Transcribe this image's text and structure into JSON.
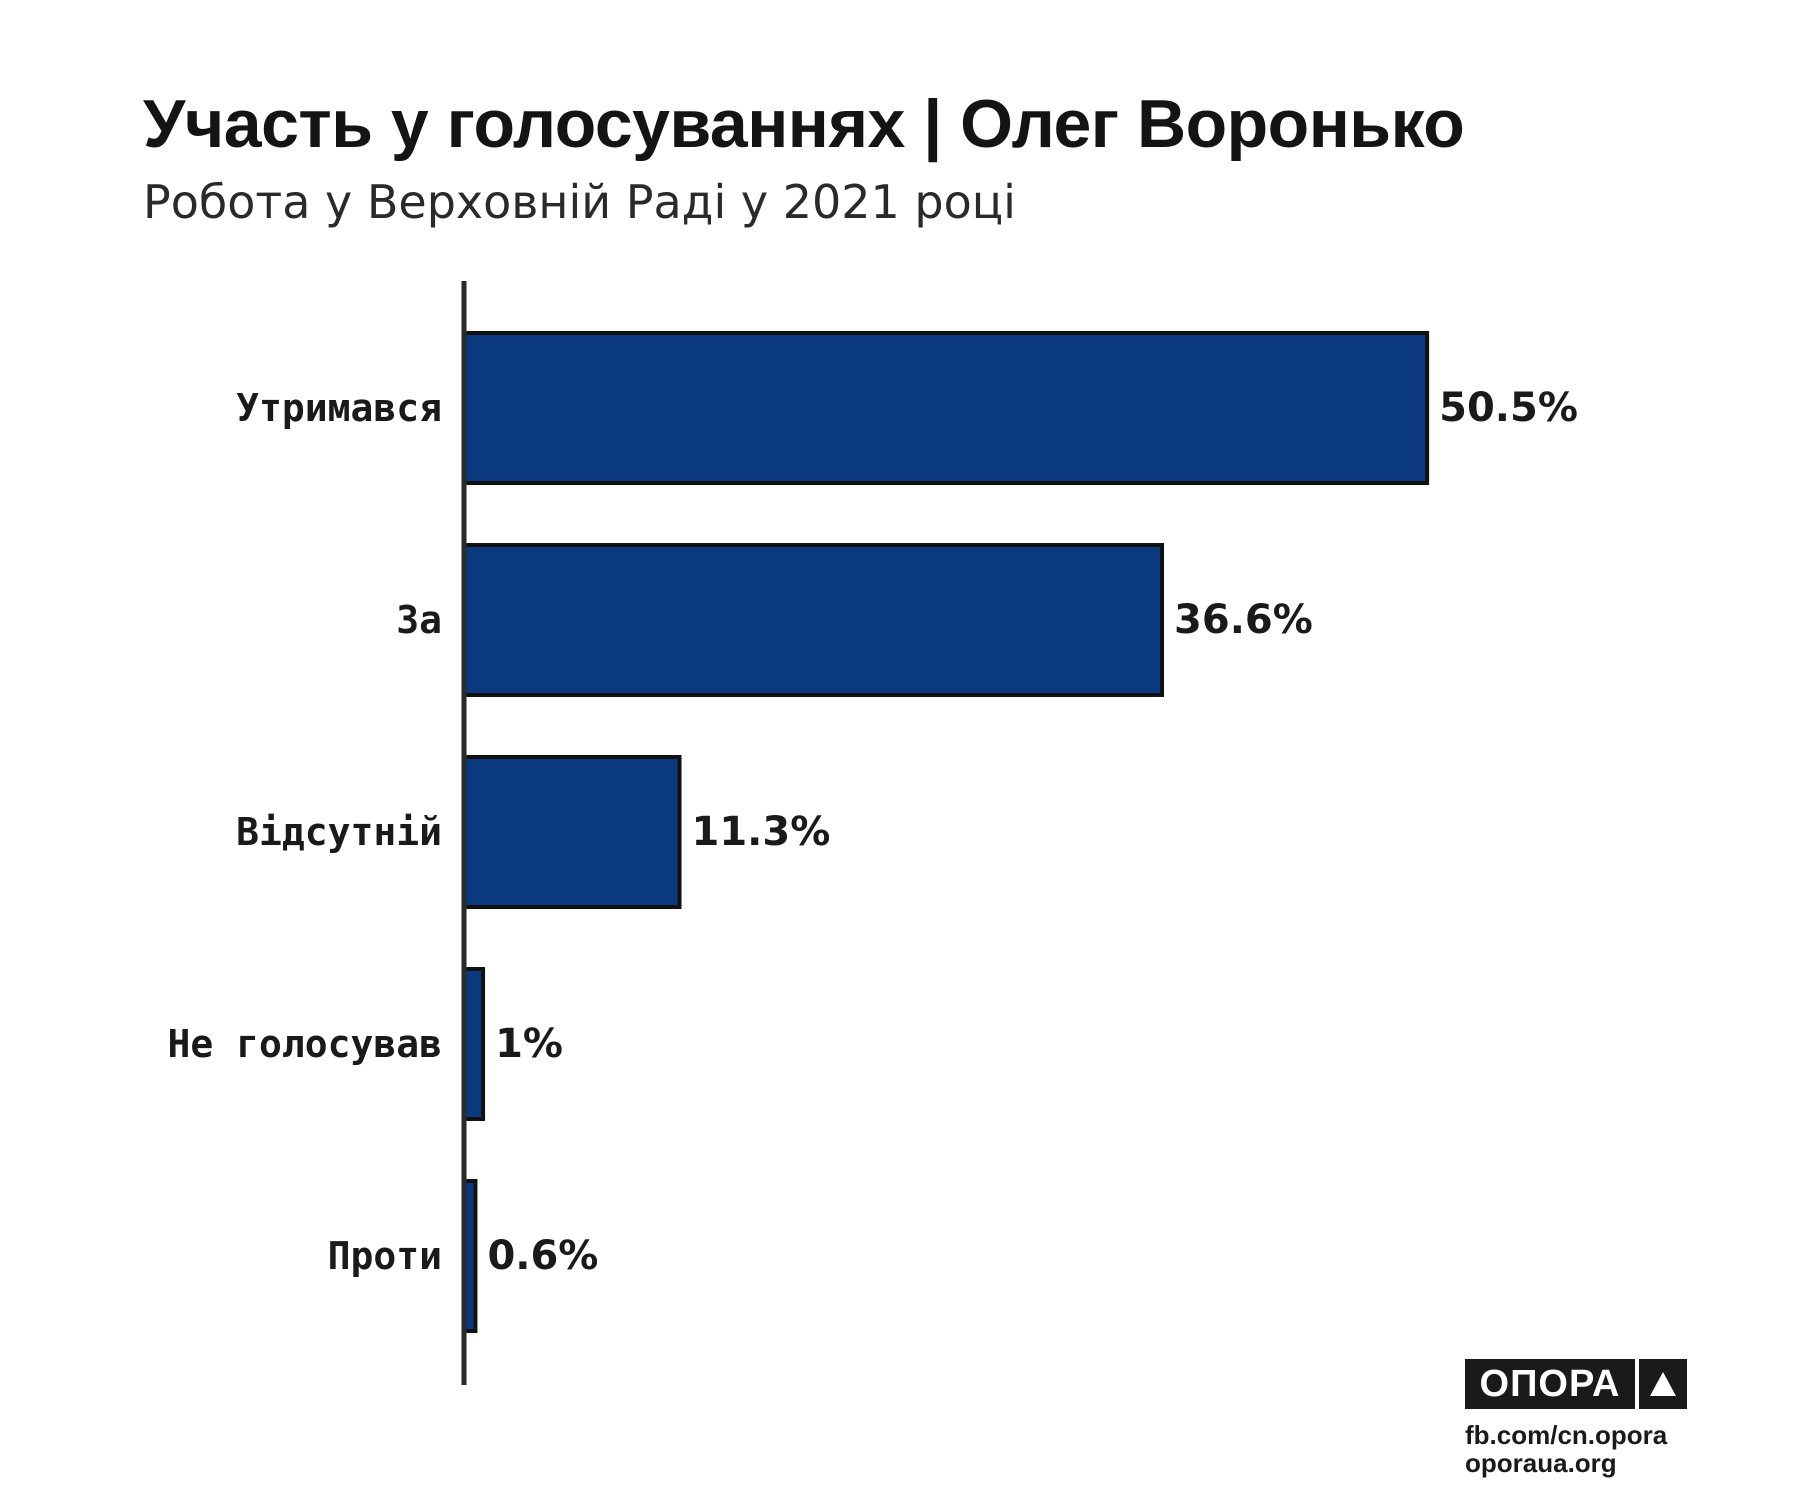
{
  "chart_data": {
    "type": "bar",
    "orientation": "horizontal",
    "title": "Участь у голосуваннях | Олег Воронько",
    "subtitle": "Робота у Верховній Раді у 2021 році",
    "categories": [
      "Утримався",
      "За",
      "Відсутній",
      "Не голосував",
      "Проти"
    ],
    "values": [
      50.5,
      36.6,
      11.3,
      1,
      0.6
    ],
    "value_labels": [
      "50.5%",
      "36.6%",
      "11.3%",
      "1%",
      "0.6%"
    ],
    "xlim": [
      0,
      52.8
    ],
    "grid": false,
    "legend": "none",
    "bar_color": "#0b3a80",
    "bar_outline": "#111111"
  },
  "branding": {
    "logo_word": "ОПОРА",
    "logo_mark_icon": "triangle-icon",
    "facebook": "fb.com/cn.opora",
    "website": "oporaua.org"
  }
}
